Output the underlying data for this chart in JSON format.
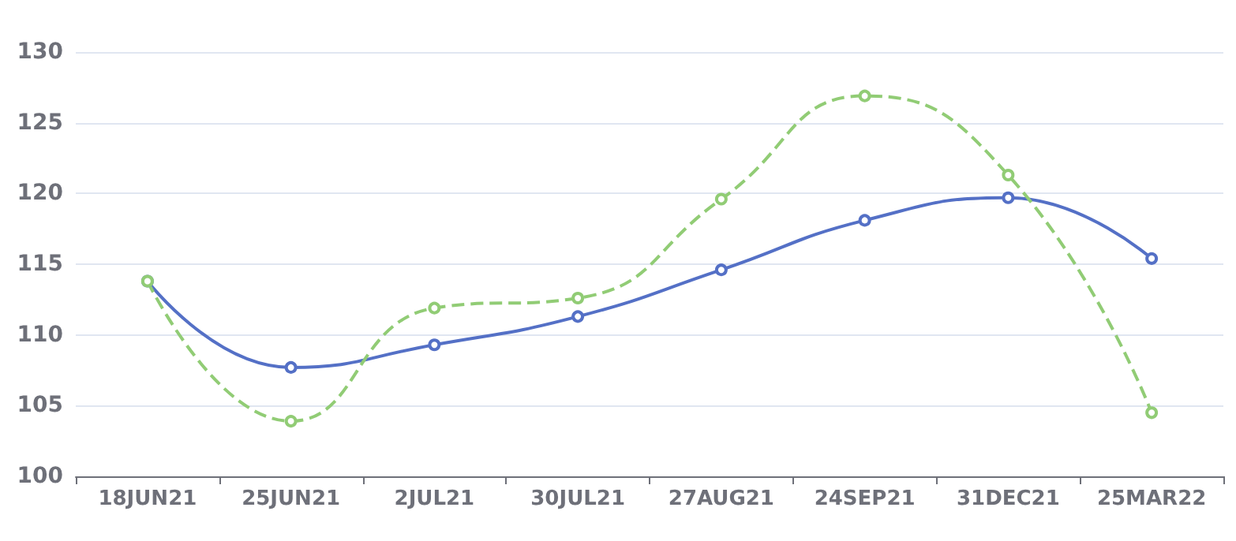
{
  "chart_data": {
    "type": "line",
    "categories": [
      "18JUN21",
      "25JUN21",
      "2JUL21",
      "30JUL21",
      "27AUG21",
      "24SEP21",
      "31DEC21",
      "25MAR22"
    ],
    "series": [
      {
        "color": "#5470c6",
        "line_style": "solid",
        "values": [
          113.8,
          107.7,
          109.3,
          111.3,
          114.6,
          118.1,
          119.7,
          115.4
        ]
      },
      {
        "color": "#91cc75",
        "line_style": "dashed",
        "values": [
          113.8,
          103.9,
          111.9,
          112.6,
          119.6,
          126.9,
          121.3,
          104.5
        ]
      }
    ],
    "ylim": [
      100,
      130
    ],
    "yticks": [
      100,
      105,
      110,
      115,
      120,
      125,
      130
    ],
    "grid": "y",
    "marker": "circle"
  }
}
